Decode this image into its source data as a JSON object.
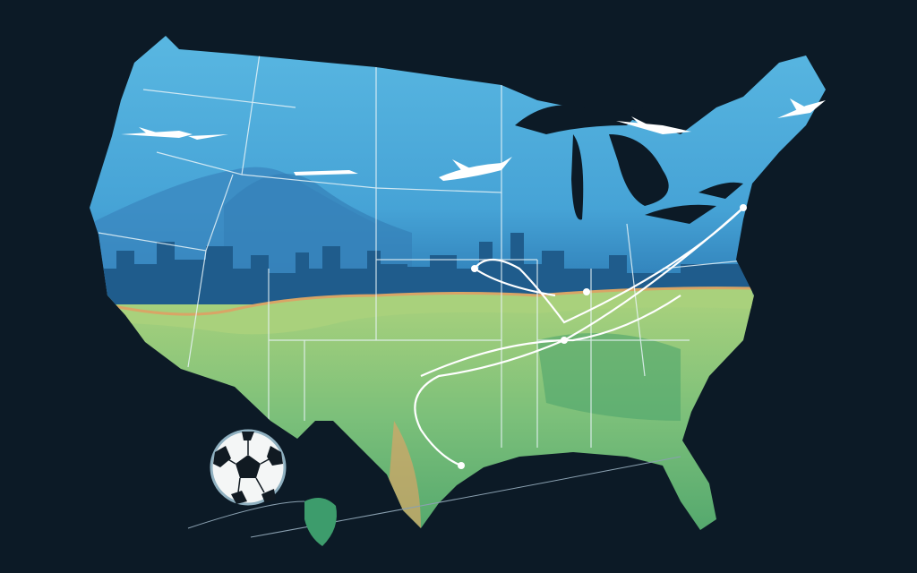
{
  "colors": {
    "background": "#0c1a26",
    "sky_top": "#5ab8e2",
    "sky_mid": "#3f95cc",
    "skyline": "#1f5c8c",
    "land_light": "#a9d17c",
    "land_dark": "#4fa56c",
    "border_line": "#e8f4f8",
    "route_line": "#ffffff",
    "coast_band": "#d9a566"
  },
  "icons": [
    "airplane-icon",
    "soccer-ball-icon",
    "route-pin-icon"
  ]
}
